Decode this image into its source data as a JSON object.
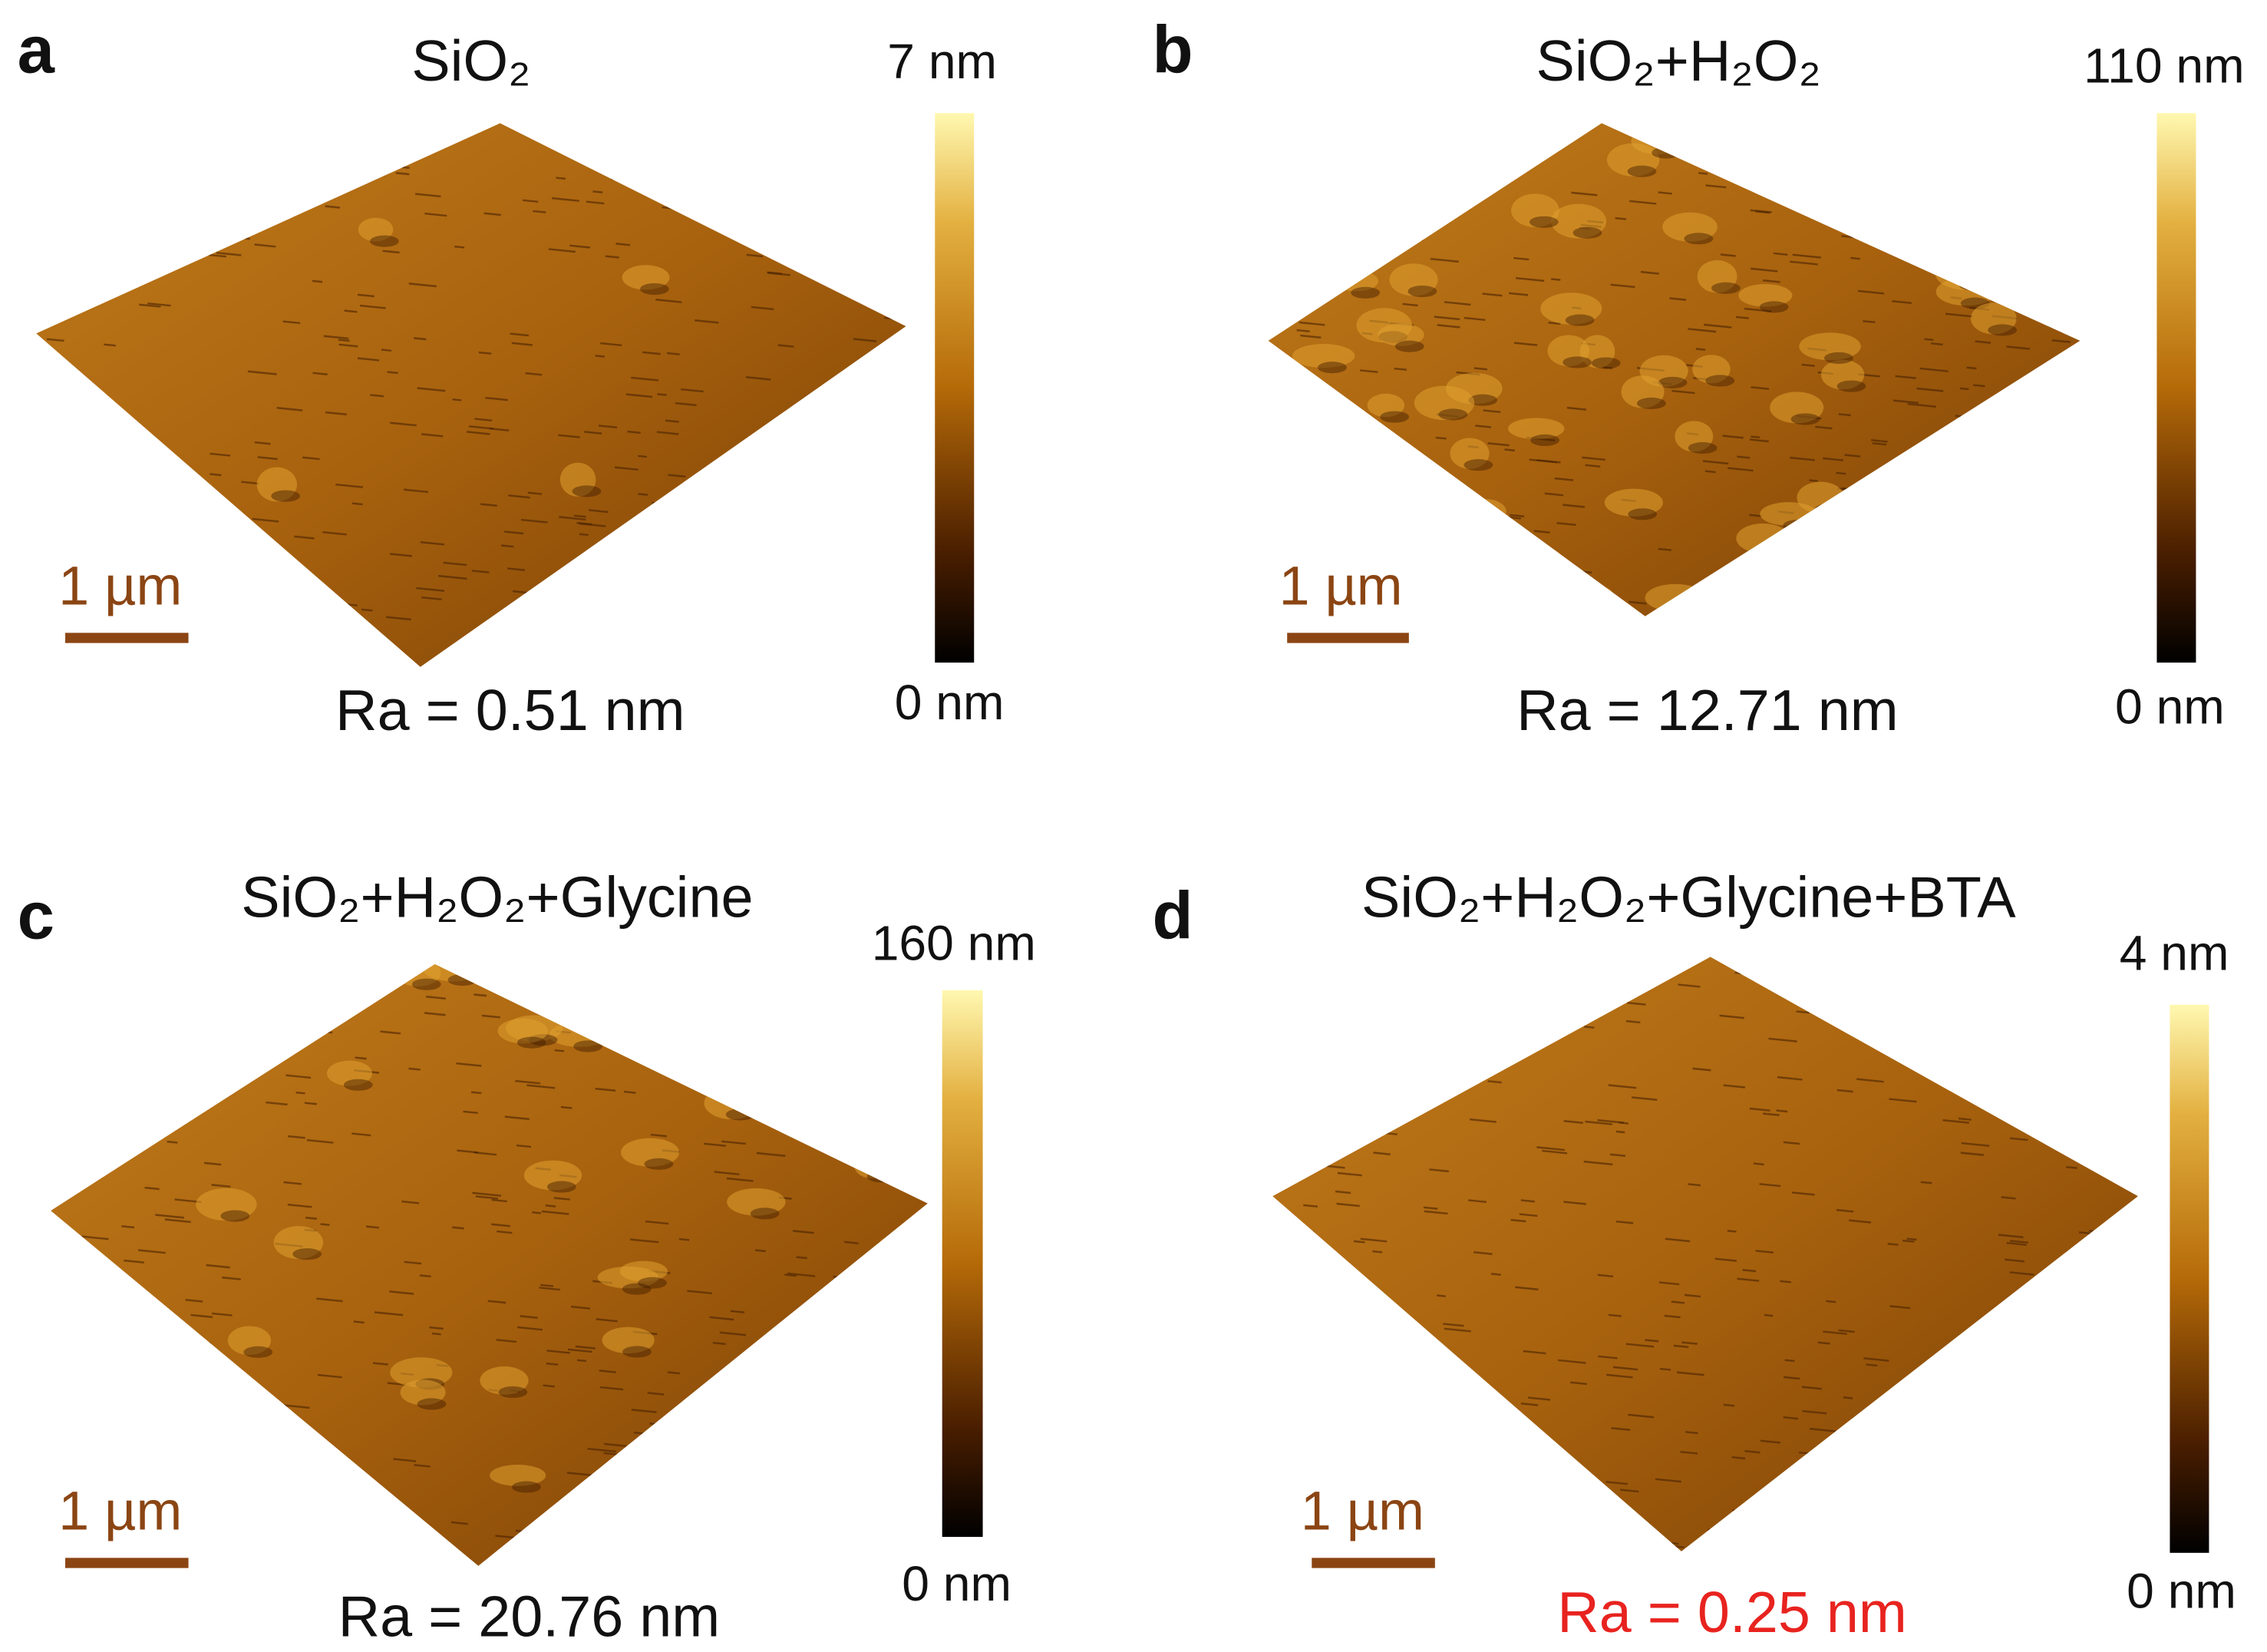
{
  "panels": [
    {
      "label": "a",
      "title": "SiO₂",
      "colorbar_max": "7 nm",
      "colorbar_min": "0 nm",
      "scale_bar": "1 µm",
      "roughness": "Ra = 0.51 nm"
    },
    {
      "label": "b",
      "title": "SiO₂+H₂O₂",
      "colorbar_max": "110 nm",
      "colorbar_min": "0 nm",
      "scale_bar": "1 µm",
      "roughness": "Ra = 12.71 nm"
    },
    {
      "label": "c",
      "title": "SiO₂+H₂O₂+Glycine",
      "colorbar_max": "160 nm",
      "colorbar_min": "0 nm",
      "scale_bar": "1 µm",
      "roughness": "Ra = 20.76 nm"
    },
    {
      "label": "d",
      "title": "SiO₂+H₂O₂+Glycine+BTA",
      "colorbar_max": "4 nm",
      "colorbar_min": "0 nm",
      "scale_bar": "1 µm",
      "roughness": "Ra = 0.25 nm"
    }
  ]
}
